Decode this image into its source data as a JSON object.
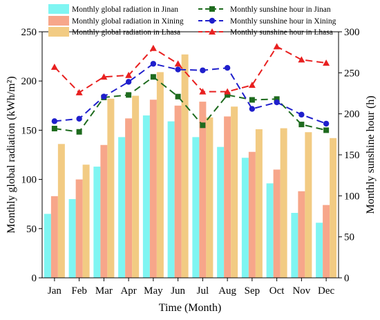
{
  "chart_data": {
    "type": "bar+line",
    "categories": [
      "Jan",
      "Feb",
      "Mar",
      "Apr",
      "May",
      "Jun",
      "Jul",
      "Aug",
      "Sep",
      "Oct",
      "Nov",
      "Dec"
    ],
    "xlabel": "Time (Month)",
    "ylabel_left": "Monthly global radiation (kWh/m²)",
    "ylabel_right": "Monthly sunshine hour (h)",
    "ylim_left": [
      0,
      250
    ],
    "yticks_left": [
      0,
      50,
      100,
      150,
      200,
      250
    ],
    "ylim_right": [
      0,
      300
    ],
    "yticks_right": [
      0,
      50,
      100,
      150,
      200,
      250,
      300
    ],
    "grid": false,
    "legend_position": "top",
    "bar_series": [
      {
        "name": "Monthly global radiation in Jinan",
        "color": "#7ff5f2",
        "values": [
          65,
          80,
          113,
          143,
          165,
          159,
          143,
          133,
          122,
          96,
          66,
          56
        ]
      },
      {
        "name": "Monthly global radiation in Xining",
        "color": "#f7a68a",
        "values": [
          83,
          100,
          135,
          162,
          181,
          175,
          179,
          164,
          128,
          110,
          88,
          74
        ]
      },
      {
        "name": "Monthly global radiation in Lhasa",
        "color": "#f2cb83",
        "values": [
          136,
          115,
          182,
          185,
          209,
          227,
          163,
          174,
          151,
          152,
          148,
          142
        ]
      }
    ],
    "line_series": [
      {
        "name": "Monthly sunshine hour in Jinan",
        "color": "#1e6b1e",
        "marker": "square",
        "values": [
          182,
          178,
          220,
          223,
          245,
          221,
          186,
          223,
          217,
          218,
          187,
          180
        ]
      },
      {
        "name": "Monthly sunshine hour in Xining",
        "color": "#1f1fcc",
        "marker": "circle",
        "values": [
          191,
          194,
          221,
          239,
          261,
          254,
          253,
          256,
          206,
          214,
          199,
          188
        ]
      },
      {
        "name": "Monthly sunshine hour in Lhasa",
        "color": "#e82020",
        "marker": "triangle",
        "values": [
          257,
          226,
          245,
          247,
          280,
          261,
          227,
          227,
          235,
          282,
          266,
          262
        ]
      }
    ]
  }
}
